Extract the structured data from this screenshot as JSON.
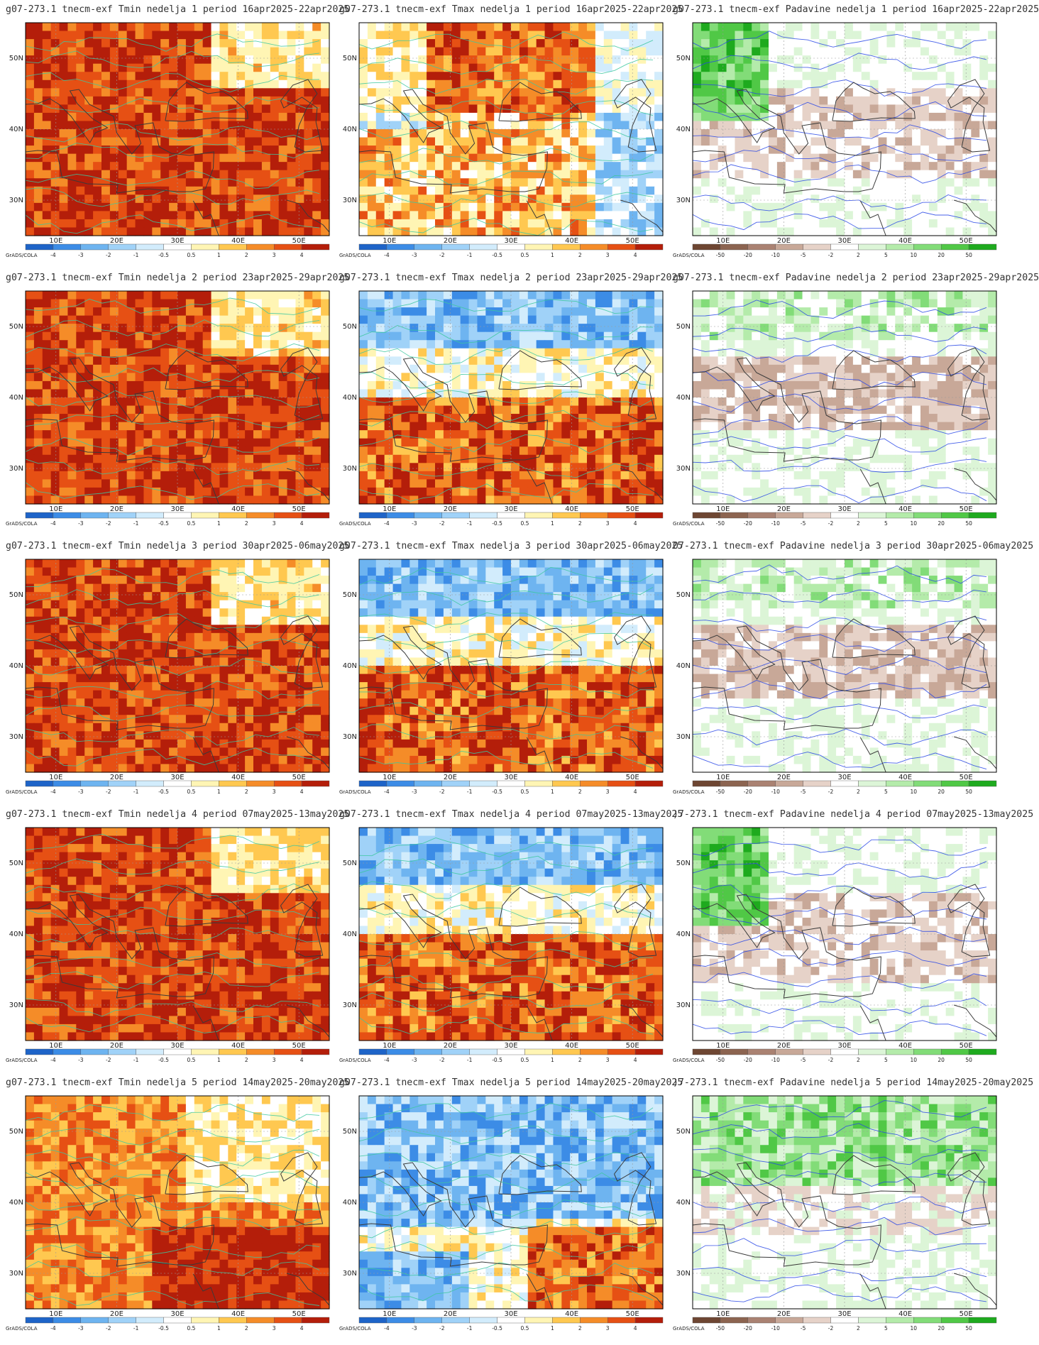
{
  "grid": {
    "lon_ticks": [
      "10E",
      "20E",
      "30E",
      "40E",
      "50E"
    ],
    "lat_ticks": [
      "50N",
      "40N",
      "30N"
    ],
    "software_label": "GrADS/COLA"
  },
  "colorbars": {
    "temp": {
      "labels": [
        "-4",
        "-3",
        "-2",
        "-1",
        "-0.5",
        "0.5",
        "1",
        "2",
        "3",
        "4"
      ],
      "colors": [
        "#1e64c8",
        "#3c8ce6",
        "#6eb4f0",
        "#a0d2f8",
        "#d2ecfc",
        "#ffffff",
        "#fff5b4",
        "#ffc850",
        "#f58c28",
        "#e65014",
        "#b41e0a"
      ]
    },
    "precip": {
      "labels": [
        "-50",
        "-20",
        "-10",
        "-5",
        "-2",
        "2",
        "5",
        "10",
        "20",
        "50"
      ],
      "colors": [
        "#6e4632",
        "#8c6450",
        "#aa8272",
        "#c8a898",
        "#e6d2c8",
        "#ffffff",
        "#dcf5d7",
        "#b4ebaa",
        "#82dc78",
        "#50c846",
        "#1eaa1e"
      ]
    }
  },
  "panels": [
    {
      "title": "g07-273.1 tnecm-exf Tmin nedelja 1 period 16apr2025-22apr2025",
      "variable": "Tmin",
      "colorbar": "temp",
      "dominant": "warm_strong",
      "contour_color": "#3cc8a0"
    },
    {
      "title": "g07-273.1 tnecm-exf Tmax nedelja 1 period 16apr2025-22apr2025",
      "variable": "Tmax",
      "colorbar": "temp",
      "dominant": "mixed",
      "contour_color": "#3cc8a0"
    },
    {
      "title": "g07-273.1 tnecm-exf Padavine nedelja 1 period 16apr2025-22apr2025",
      "variable": "Padavine",
      "colorbar": "precip",
      "dominant": "wet_west",
      "contour_color": "#2846e6"
    },
    {
      "title": "g07-273.1 tnecm-exf Tmin nedelja 2 period 23apr2025-29apr2025",
      "variable": "Tmin",
      "colorbar": "temp",
      "dominant": "warm_strong",
      "contour_color": "#3cc8a0"
    },
    {
      "title": "g07-273.1 tnecm-exf Tmax nedelja 2 period 23apr2025-29apr2025",
      "variable": "Tmax",
      "colorbar": "temp",
      "dominant": "cool_north",
      "contour_color": "#3cc8a0"
    },
    {
      "title": "g07-273.1 tnecm-exf Padavine nedelja 2 period 23apr2025-29apr2025",
      "variable": "Padavine",
      "colorbar": "precip",
      "dominant": "dry_band",
      "contour_color": "#2846e6"
    },
    {
      "title": "g07-273.1 tnecm-exf Tmin nedelja 3 period 30apr2025-06may2025",
      "variable": "Tmin",
      "colorbar": "temp",
      "dominant": "warm_strong",
      "contour_color": "#3cc8a0"
    },
    {
      "title": "g07-273.1 tnecm-exf Tmax nedelja 3 period 30apr2025-06may2025",
      "variable": "Tmax",
      "colorbar": "temp",
      "dominant": "cool_north",
      "contour_color": "#3cc8a0"
    },
    {
      "title": "07-273.1 tnecm-exf Padavine nedelja 3 period 30apr2025-06may2025",
      "variable": "Padavine",
      "colorbar": "precip",
      "dominant": "dry_band",
      "contour_color": "#2846e6"
    },
    {
      "title": "g07-273.1 tnecm-exf Tmin nedelja 4 period 07may2025-13may2025",
      "variable": "Tmin",
      "colorbar": "temp",
      "dominant": "warm_strong",
      "contour_color": "#3cc8a0"
    },
    {
      "title": "g07-273.1 tnecm-exf Tmax nedelja 4 period 07may2025-13may2025",
      "variable": "Tmax",
      "colorbar": "temp",
      "dominant": "cool_north",
      "contour_color": "#3cc8a0"
    },
    {
      "title": ")7-273.1 tnecm-exf Padavine nedelja 4 period 07may2025-13may2025",
      "variable": "Padavine",
      "colorbar": "precip",
      "dominant": "wet_west",
      "contour_color": "#2846e6"
    },
    {
      "title": "g07-273.1 tnecm-exf Tmin nedelja 5 period 14may2025-20may2025",
      "variable": "Tmin",
      "colorbar": "temp",
      "dominant": "warm_mid",
      "contour_color": "#3cc8a0"
    },
    {
      "title": "g07-273.1 tnecm-exf Tmax nedelja 5 period 14may2025-20may2025",
      "variable": "Tmax",
      "colorbar": "temp",
      "dominant": "cool_strong",
      "contour_color": "#3cc8a0"
    },
    {
      "title": ")7-273.1 tnecm-exf Padavine nedelja 5 period 14may2025-20may2025",
      "variable": "Padavine",
      "colorbar": "precip",
      "dominant": "wet_north",
      "contour_color": "#2846e6"
    }
  ]
}
